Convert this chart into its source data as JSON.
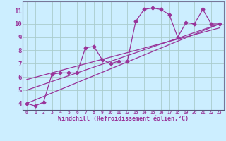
{
  "xlabel": "Windchill (Refroidissement éolien,°C)",
  "bg_color": "#cceeff",
  "grid_color": "#aacccc",
  "line_color": "#993399",
  "xlim": [
    -0.5,
    23.5
  ],
  "ylim": [
    3.5,
    11.7
  ],
  "xticks": [
    0,
    1,
    2,
    3,
    4,
    5,
    6,
    7,
    8,
    9,
    10,
    11,
    12,
    13,
    14,
    15,
    16,
    17,
    18,
    19,
    20,
    21,
    22,
    23
  ],
  "yticks": [
    4,
    5,
    6,
    7,
    8,
    9,
    10,
    11
  ],
  "series1_x": [
    0,
    1,
    2,
    3,
    4,
    5,
    6,
    7,
    8,
    9,
    10,
    11,
    12,
    13,
    14,
    15,
    16,
    17,
    18,
    19,
    20,
    21,
    22,
    23
  ],
  "series1_y": [
    4.0,
    3.8,
    4.1,
    6.2,
    6.3,
    6.3,
    6.3,
    8.2,
    8.3,
    7.3,
    7.0,
    7.2,
    7.2,
    10.2,
    11.1,
    11.2,
    11.1,
    10.7,
    9.0,
    10.1,
    10.0,
    11.1,
    10.0,
    10.0
  ],
  "trend1_x": [
    0,
    23
  ],
  "trend1_y": [
    4.0,
    10.0
  ],
  "trend2_x": [
    0,
    23
  ],
  "trend2_y": [
    5.0,
    10.0
  ],
  "trend3_x": [
    0,
    23
  ],
  "trend3_y": [
    5.8,
    9.7
  ]
}
